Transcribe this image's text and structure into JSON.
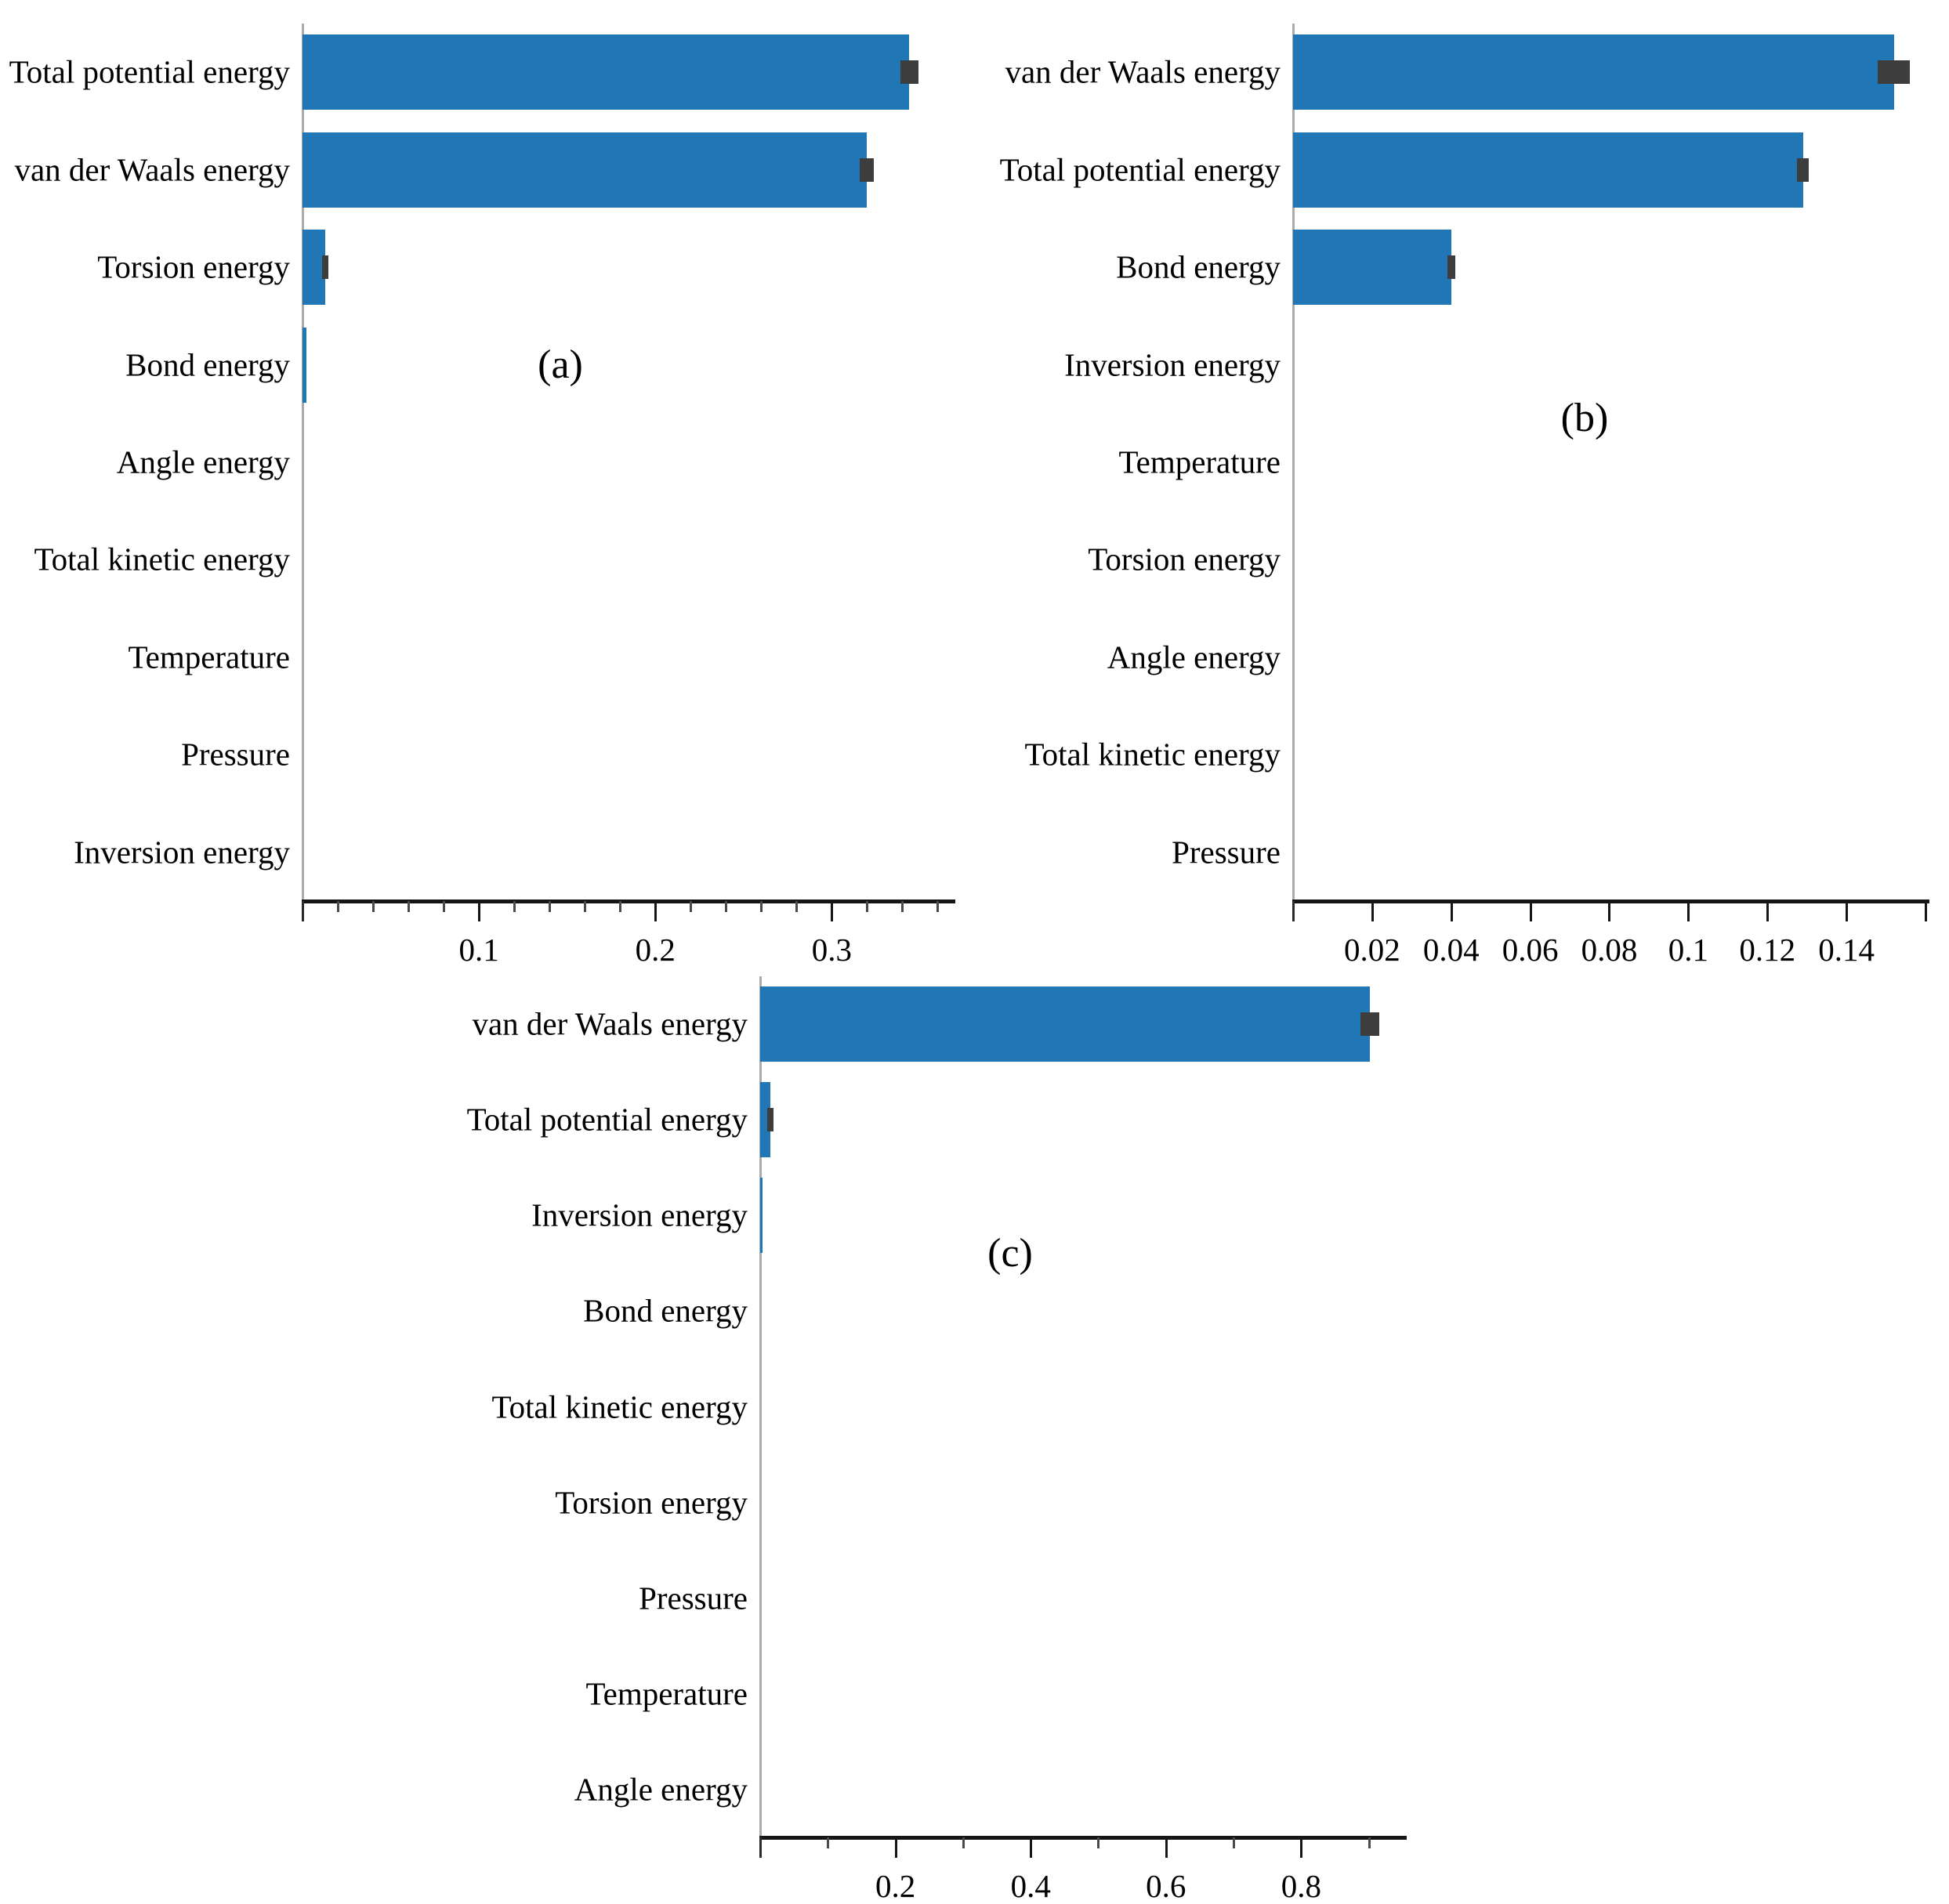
{
  "figure": {
    "background": "#ffffff",
    "bar_color": "#2177b5",
    "error_color": "#3d3d3d",
    "axis_line_color": "#161616",
    "spine_color": "#ababab",
    "text_color": "#000000"
  },
  "chart_data": [
    {
      "id": "a",
      "type": "bar",
      "orientation": "horizontal",
      "panel_label": "(a)",
      "title": "",
      "xlabel": "",
      "ylabel": "",
      "grid": false,
      "legend": null,
      "xlim": [
        0,
        0.37
      ],
      "categories": [
        "Total potential energy",
        "van der Waals energy",
        "Torsion energy",
        "Bond energy",
        "Angle energy",
        "Total kinetic energy",
        "Temperature",
        "Pressure",
        "Inversion energy"
      ],
      "values": [
        0.344,
        0.32,
        0.013,
        0.002,
        0,
        0,
        0,
        0,
        0
      ],
      "errors": [
        0.005,
        0.004,
        0.001,
        0,
        0,
        0,
        0,
        0,
        0
      ],
      "ticks": [
        {
          "v": 0.02,
          "label": "",
          "major": false
        },
        {
          "v": 0.04,
          "label": "",
          "major": false
        },
        {
          "v": 0.06,
          "label": "",
          "major": false
        },
        {
          "v": 0.08,
          "label": "",
          "major": false
        },
        {
          "v": 0.1,
          "label": "0.1",
          "major": true
        },
        {
          "v": 0.12,
          "label": "",
          "major": false
        },
        {
          "v": 0.14,
          "label": "",
          "major": false
        },
        {
          "v": 0.16,
          "label": "",
          "major": false
        },
        {
          "v": 0.18,
          "label": "",
          "major": false
        },
        {
          "v": 0.2,
          "label": "0.2",
          "major": true
        },
        {
          "v": 0.22,
          "label": "",
          "major": false
        },
        {
          "v": 0.24,
          "label": "",
          "major": false
        },
        {
          "v": 0.26,
          "label": "",
          "major": false
        },
        {
          "v": 0.28,
          "label": "",
          "major": false
        },
        {
          "v": 0.3,
          "label": "0.3",
          "major": true
        },
        {
          "v": 0.32,
          "label": "",
          "major": false
        },
        {
          "v": 0.34,
          "label": "",
          "major": false
        },
        {
          "v": 0.36,
          "label": "",
          "major": false
        }
      ]
    },
    {
      "id": "b",
      "type": "bar",
      "orientation": "horizontal",
      "panel_label": "(b)",
      "title": "",
      "xlabel": "",
      "ylabel": "",
      "grid": false,
      "legend": null,
      "xlim": [
        0,
        0.161
      ],
      "categories": [
        "van der Waals energy",
        "Total potential energy",
        "Bond energy",
        "Inversion energy",
        "Temperature",
        "Torsion energy",
        "Angle energy",
        "Total kinetic energy",
        "Pressure"
      ],
      "values": [
        0.152,
        0.129,
        0.04,
        0,
        0,
        0,
        0,
        0,
        0
      ],
      "errors": [
        0.004,
        0.0015,
        0.001,
        0,
        0,
        0,
        0,
        0,
        0
      ],
      "ticks": [
        {
          "v": 0.02,
          "label": "0.02",
          "major": true
        },
        {
          "v": 0.04,
          "label": "0.04",
          "major": true
        },
        {
          "v": 0.06,
          "label": "0.06",
          "major": true
        },
        {
          "v": 0.08,
          "label": "0.08",
          "major": true
        },
        {
          "v": 0.1,
          "label": "0.1",
          "major": true
        },
        {
          "v": 0.12,
          "label": "0.12",
          "major": true
        },
        {
          "v": 0.14,
          "label": "0.14",
          "major": true
        },
        {
          "v": 0.16,
          "label": "",
          "major": true
        }
      ]
    },
    {
      "id": "c",
      "type": "bar",
      "orientation": "horizontal",
      "panel_label": "(c)",
      "title": "",
      "xlabel": "",
      "ylabel": "",
      "grid": false,
      "legend": null,
      "xlim": [
        0,
        0.956
      ],
      "categories": [
        "van der Waals energy",
        "Total potential energy",
        "Inversion energy",
        "Bond energy",
        "Total kinetic energy",
        "Torsion energy",
        "Pressure",
        "Temperature",
        "Angle energy"
      ],
      "values": [
        0.902,
        0.015,
        0.004,
        0,
        0,
        0,
        0,
        0,
        0
      ],
      "errors": [
        0.014,
        0.004,
        0,
        0,
        0,
        0,
        0,
        0,
        0
      ],
      "ticks": [
        {
          "v": 0.1,
          "label": "",
          "major": false
        },
        {
          "v": 0.2,
          "label": "0.2",
          "major": true
        },
        {
          "v": 0.3,
          "label": "",
          "major": false
        },
        {
          "v": 0.4,
          "label": "0.4",
          "major": true
        },
        {
          "v": 0.5,
          "label": "",
          "major": false
        },
        {
          "v": 0.6,
          "label": "0.6",
          "major": true
        },
        {
          "v": 0.7,
          "label": "",
          "major": false
        },
        {
          "v": 0.8,
          "label": "0.8",
          "major": true
        },
        {
          "v": 0.9,
          "label": "",
          "major": false
        }
      ]
    }
  ]
}
